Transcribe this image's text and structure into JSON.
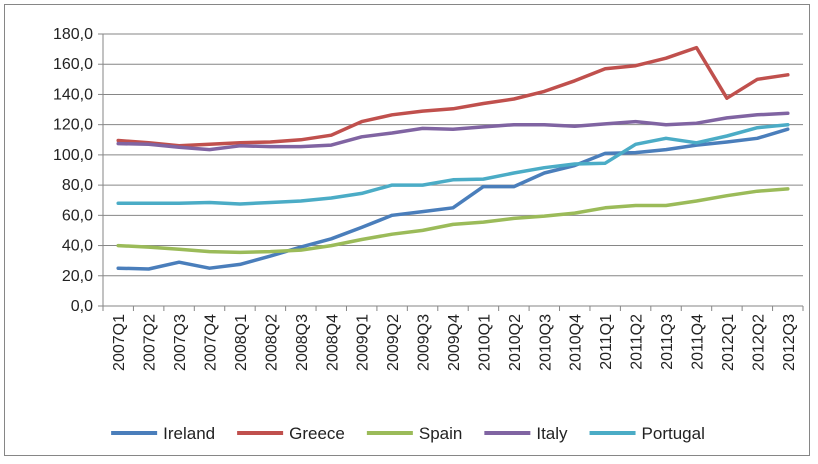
{
  "chart_data": {
    "type": "line",
    "title": "",
    "xlabel": "",
    "ylabel": "",
    "ylim": [
      0,
      180
    ],
    "yticks": [
      "0,0",
      "20,0",
      "40,0",
      "60,0",
      "80,0",
      "100,0",
      "120,0",
      "140,0",
      "160,0",
      "180,0"
    ],
    "grid": true,
    "legend_position": "bottom",
    "categories": [
      "2007Q1",
      "2007Q2",
      "2007Q3",
      "2007Q4",
      "2008Q1",
      "2008Q2",
      "2008Q3",
      "2008Q4",
      "2009Q1",
      "2009Q2",
      "2009Q3",
      "2009Q4",
      "2010Q1",
      "2010Q2",
      "2010Q3",
      "2010Q4",
      "2011Q1",
      "2011Q2",
      "2011Q3",
      "2011Q4",
      "2012Q1",
      "2012Q2",
      "2012Q3"
    ],
    "series": [
      {
        "name": "Ireland",
        "color": "#4a7ebb",
        "values": [
          25,
          24.5,
          29,
          25,
          27.5,
          33,
          39,
          44.5,
          52,
          60,
          62.5,
          65,
          79,
          79,
          88,
          93,
          101,
          101.5,
          103.5,
          106.5,
          108.5,
          111,
          117
        ]
      },
      {
        "name": "Greece",
        "color": "#c0504d",
        "values": [
          109.5,
          108,
          106,
          107,
          108,
          108.5,
          110,
          113,
          122,
          126.5,
          129,
          130.5,
          134,
          137,
          142,
          149,
          157,
          159,
          164,
          171,
          137.5,
          150,
          153
        ]
      },
      {
        "name": "Spain",
        "color": "#9bbb59",
        "values": [
          40,
          39,
          37.5,
          36,
          35.5,
          36,
          37,
          40,
          44,
          47.5,
          50,
          54,
          55.5,
          58,
          59.5,
          61.5,
          65,
          66.5,
          66.5,
          69.5,
          73,
          76,
          77.5
        ]
      },
      {
        "name": "Italy",
        "color": "#8064a2",
        "values": [
          107.5,
          107,
          105,
          103.5,
          106,
          105.5,
          105.5,
          106.5,
          112,
          114.5,
          117.5,
          117,
          118.5,
          120,
          120,
          119,
          120.5,
          122,
          120,
          121,
          124.5,
          126.5,
          127.5
        ]
      },
      {
        "name": "Portugal",
        "color": "#4bacc6",
        "values": [
          68,
          68,
          68,
          68.5,
          67.5,
          68.5,
          69.5,
          71.5,
          74.5,
          80,
          80,
          83.5,
          84,
          88,
          91.5,
          94,
          94.5,
          107,
          111,
          108,
          112.5,
          118,
          120
        ]
      }
    ]
  }
}
